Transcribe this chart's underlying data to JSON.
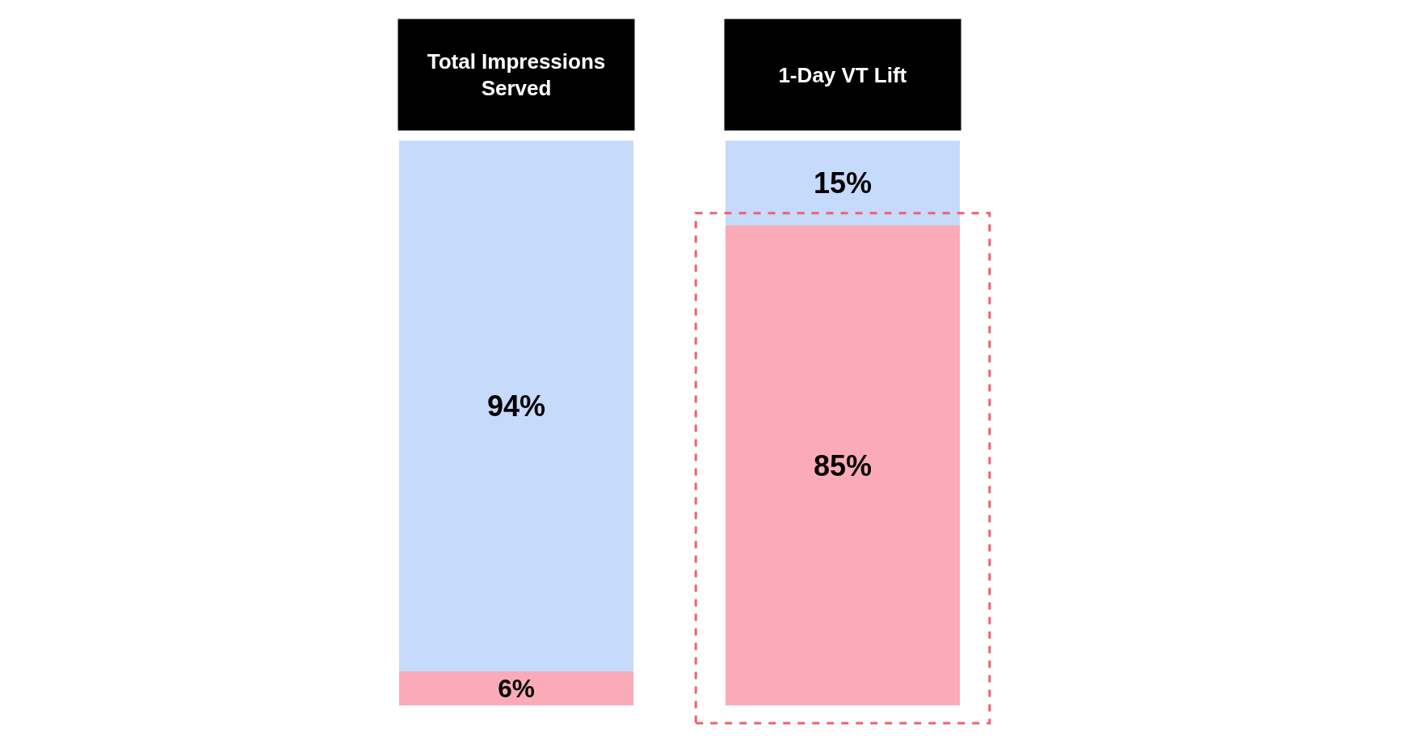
{
  "chart_data": {
    "type": "bar",
    "stacked": true,
    "categories": [
      "Total Impressions Served",
      "1-Day VT Lift"
    ],
    "series": [
      {
        "color": "#fbabb8",
        "values": [
          6,
          85
        ],
        "value_labels": [
          "6%",
          "85%"
        ]
      },
      {
        "color": "#c6dafc",
        "values": [
          94,
          15
        ],
        "value_labels": [
          "94%",
          "15%"
        ]
      }
    ],
    "tick_labels": "x"
  }
}
